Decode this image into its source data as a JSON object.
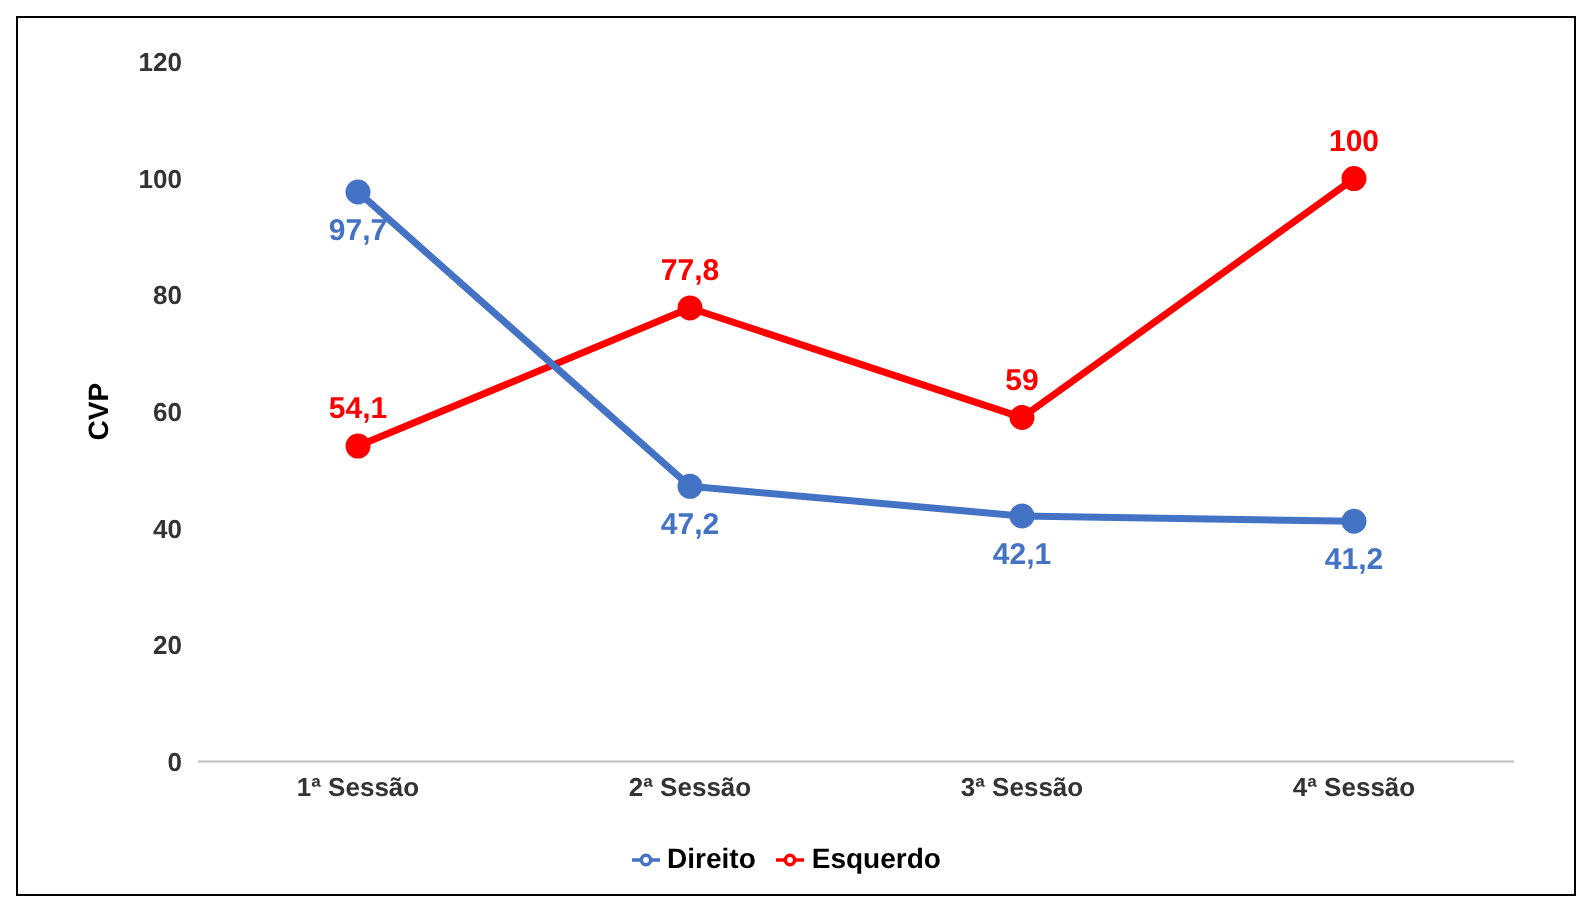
{
  "chart_data": {
    "type": "line",
    "ylabel": "CVP",
    "categories": [
      "1ª Sessão",
      "2ª Sessão",
      "3ª Sessão",
      "4ª Sessão"
    ],
    "series": [
      {
        "name": "Esquerdo",
        "color": "#ff0000",
        "values": [
          54.1,
          77.8,
          59,
          100
        ],
        "value_labels": [
          "54,1",
          "77,8",
          "59",
          "100"
        ]
      },
      {
        "name": "Direito",
        "color": "#4472c4",
        "values": [
          97.7,
          47.2,
          42.1,
          41.2
        ],
        "value_labels": [
          "97,7",
          "47,2",
          "42,1",
          "41,2"
        ]
      }
    ],
    "ylim": [
      0,
      120
    ],
    "yticks": [
      0,
      20,
      40,
      60,
      80,
      100,
      120
    ],
    "grid": false,
    "legend": "bottom",
    "marker": "circle",
    "line_style": "solid"
  }
}
